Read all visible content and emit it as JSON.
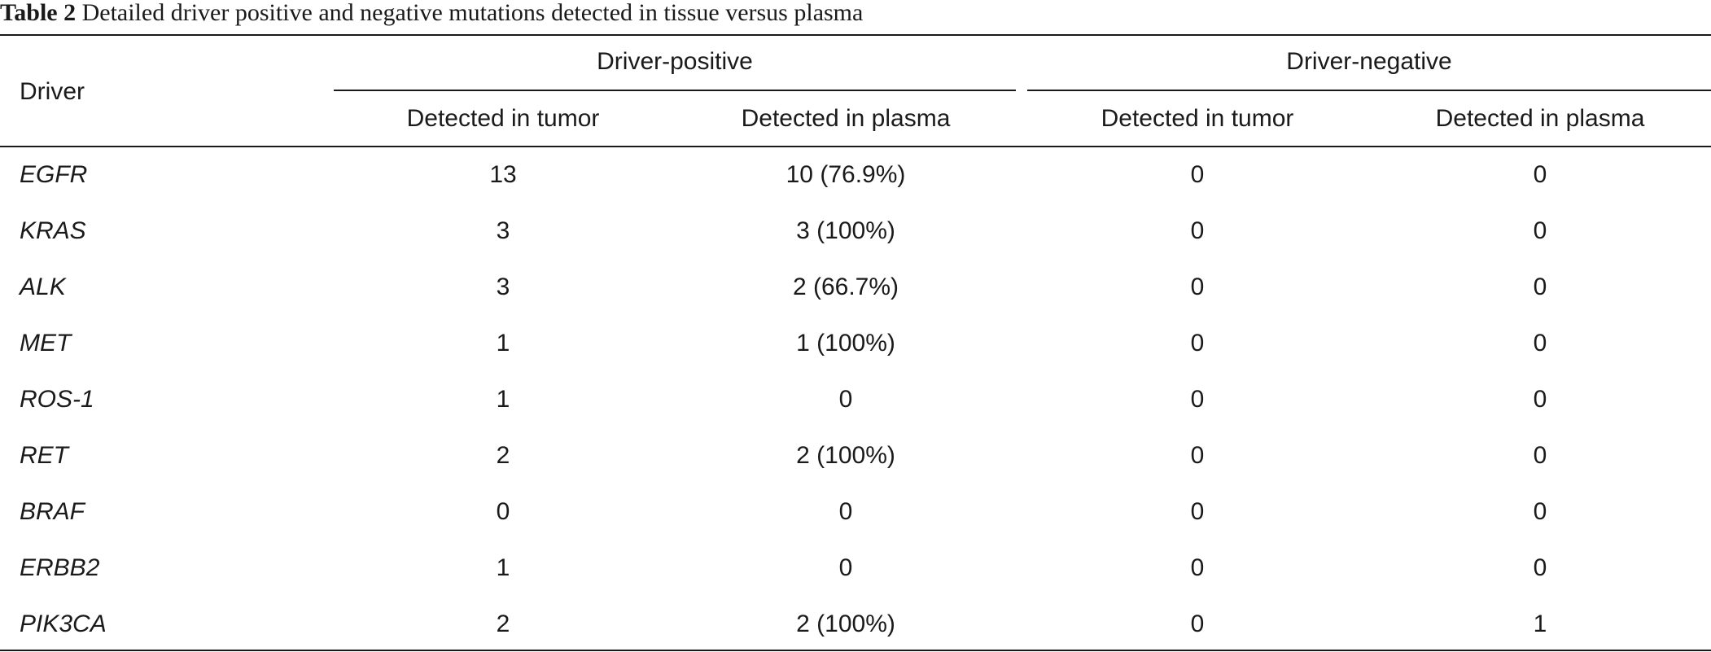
{
  "caption": {
    "label": "Table 2",
    "text": "Detailed driver positive and negative mutations detected in tissue versus plasma"
  },
  "headers": {
    "driver": "Driver",
    "group_positive": "Driver-positive",
    "group_negative": "Driver-negative",
    "pos_tumor": "Detected in tumor",
    "pos_plasma": "Detected in plasma",
    "neg_tumor": "Detected in tumor",
    "neg_plasma": "Detected in plasma"
  },
  "rows": [
    {
      "driver": "EGFR",
      "pos_tumor": "13",
      "pos_plasma": "10 (76.9%)",
      "neg_tumor": "0",
      "neg_plasma": "0"
    },
    {
      "driver": "KRAS",
      "pos_tumor": "3",
      "pos_plasma": "3 (100%)",
      "neg_tumor": "0",
      "neg_plasma": "0"
    },
    {
      "driver": "ALK",
      "pos_tumor": "3",
      "pos_plasma": "2 (66.7%)",
      "neg_tumor": "0",
      "neg_plasma": "0"
    },
    {
      "driver": "MET",
      "pos_tumor": "1",
      "pos_plasma": "1 (100%)",
      "neg_tumor": "0",
      "neg_plasma": "0"
    },
    {
      "driver": "ROS-1",
      "pos_tumor": "1",
      "pos_plasma": "0",
      "neg_tumor": "0",
      "neg_plasma": "0"
    },
    {
      "driver": "RET",
      "pos_tumor": "2",
      "pos_plasma": "2 (100%)",
      "neg_tumor": "0",
      "neg_plasma": "0"
    },
    {
      "driver": "BRAF",
      "pos_tumor": "0",
      "pos_plasma": "0",
      "neg_tumor": "0",
      "neg_plasma": "0"
    },
    {
      "driver": "ERBB2",
      "pos_tumor": "1",
      "pos_plasma": "0",
      "neg_tumor": "0",
      "neg_plasma": "0"
    },
    {
      "driver": "PIK3CA",
      "pos_tumor": "2",
      "pos_plasma": "2 (100%)",
      "neg_tumor": "0",
      "neg_plasma": "1"
    }
  ]
}
